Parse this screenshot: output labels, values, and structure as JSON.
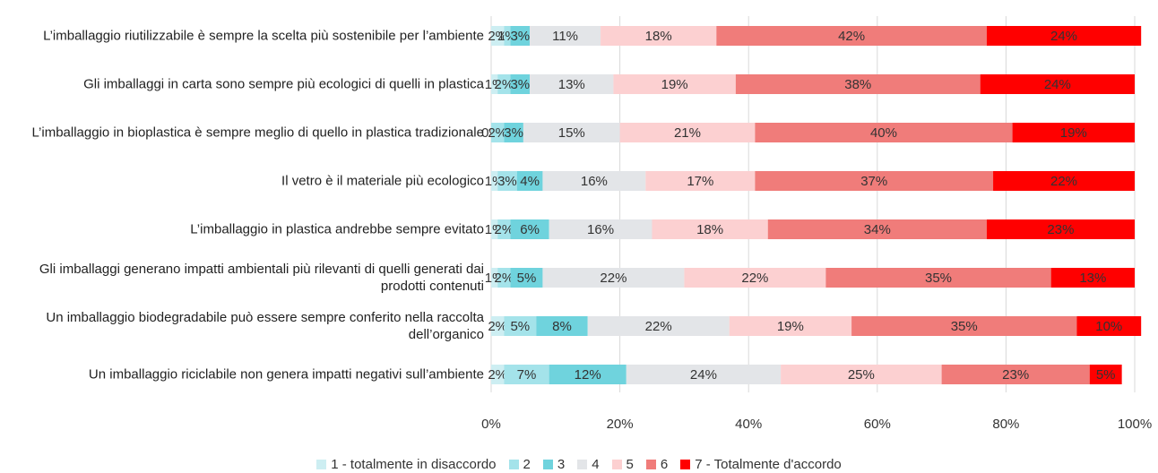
{
  "chart_data": {
    "type": "stacked_barh",
    "categories": [
      "L’imballaggio riutilizzabile è sempre la scelta più sostenibile per l’ambiente",
      "Gli imballaggi in carta sono sempre più ecologici di quelli in plastica",
      "L’imballaggio in bioplastica è sempre meglio di quello in plastica tradizionale",
      "Il vetro è il materiale più ecologico",
      "L’imballaggio in plastica andrebbe sempre evitato",
      "Gli imballaggi generano impatti ambientali più rilevanti di quelli generati dai prodotti contenuti",
      "Un imballaggio biodegradabile può essere sempre conferito nella raccolta dell’organico",
      "Un imballaggio riciclabile non genera impatti negativi sull’ambiente"
    ],
    "series": [
      {
        "name": "1 - totalmente in disaccordo",
        "color": "#cdeef2",
        "values": [
          2,
          1,
          0,
          1,
          1,
          1,
          2,
          2
        ],
        "value_labels": [
          "2%",
          "1%",
          "0%",
          "1%",
          "1%",
          "1%",
          "2%",
          "2%"
        ]
      },
      {
        "name": "2",
        "color": "#a4e3ea",
        "values": [
          1,
          2,
          2,
          3,
          2,
          2,
          5,
          7
        ],
        "value_labels": [
          "1%",
          "2%",
          "2%",
          "3%",
          "2%",
          "2%",
          "5%",
          "7%"
        ]
      },
      {
        "name": "3",
        "color": "#6fd3dd",
        "values": [
          3,
          3,
          3,
          4,
          6,
          5,
          8,
          12
        ],
        "value_labels": [
          "3%",
          "3%",
          "3%",
          "4%",
          "6%",
          "5%",
          "8%",
          "12%"
        ]
      },
      {
        "name": "4",
        "color": "#e3e5e8",
        "values": [
          11,
          13,
          15,
          16,
          16,
          22,
          22,
          24
        ],
        "value_labels": [
          "11%",
          "13%",
          "15%",
          "16%",
          "16%",
          "22%",
          "22%",
          "24%"
        ]
      },
      {
        "name": "5",
        "color": "#fcd0d1",
        "values": [
          18,
          19,
          21,
          17,
          18,
          22,
          19,
          25
        ],
        "value_labels": [
          "18%",
          "19%",
          "21%",
          "17%",
          "18%",
          "22%",
          "19%",
          "25%"
        ]
      },
      {
        "name": "6",
        "color": "#f07c7a",
        "values": [
          42,
          38,
          40,
          37,
          34,
          35,
          35,
          23
        ],
        "value_labels": [
          "42%",
          "38%",
          "40%",
          "37%",
          "34%",
          "35%",
          "35%",
          "23%"
        ]
      },
      {
        "name": "7 - Totalmente d'accordo",
        "color": "#ff0000",
        "values": [
          24,
          24,
          19,
          22,
          23,
          13,
          10,
          5
        ],
        "value_labels": [
          "24%",
          "24%",
          "19%",
          "22%",
          "23%",
          "13%",
          "10%",
          "5%"
        ]
      }
    ],
    "xlim": [
      0,
      100
    ],
    "xticks": [
      {
        "value": 0,
        "label": "0%"
      },
      {
        "value": 20,
        "label": "20%"
      },
      {
        "value": 40,
        "label": "40%"
      },
      {
        "value": 60,
        "label": "60%"
      },
      {
        "value": 80,
        "label": "80%"
      },
      {
        "value": 100,
        "label": "100%"
      }
    ],
    "grid": true,
    "legend": "bottom"
  }
}
